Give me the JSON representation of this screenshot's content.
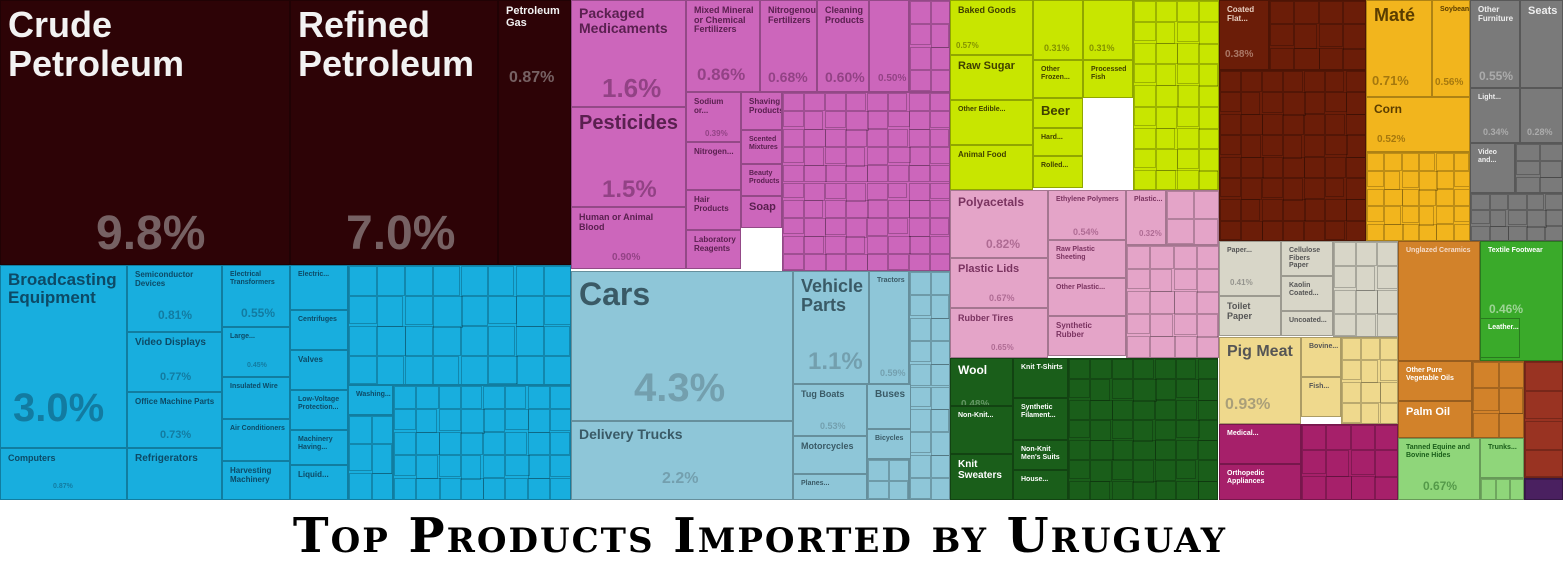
{
  "chart_data": {
    "type": "treemap",
    "title": "Top Products Imported by Uruguay",
    "value_unit": "% of imports",
    "colors": {
      "mineral": "#2d0306",
      "chemicals": "#cc66bb",
      "vegetable": "#c8e600",
      "animal_fats": "#6b1d08",
      "foodstuffs": "#f2b51d",
      "stone": "#7a7a7a",
      "plastics": "#e4a4c8",
      "paper": "#d8d6c8",
      "instruments": "#993322",
      "textiles": "#1a5e1a",
      "animal_products": "#efd98d",
      "hides": "#a6206a",
      "transport": "#8ec6d8",
      "machinery": "#18aede",
      "misc": "#4a2060",
      "tan_oils": "#d2822a",
      "green2": "#3aaa2a"
    },
    "items": [
      {
        "name": "Crude Petroleum",
        "value": "9.8%",
        "group": "mineral"
      },
      {
        "name": "Refined Petroleum",
        "value": "7.0%",
        "group": "mineral"
      },
      {
        "name": "Petroleum Gas",
        "value": "0.87%",
        "group": "mineral"
      },
      {
        "name": "Packaged Medicaments",
        "value": "1.6%",
        "group": "chemicals"
      },
      {
        "name": "Mixed Mineral or Chemical Fertilizers",
        "value": "0.86%",
        "group": "chemicals"
      },
      {
        "name": "Nitrogenous Fertilizers",
        "value": "0.68%",
        "group": "chemicals"
      },
      {
        "name": "Cleaning Products",
        "value": "0.60%",
        "group": "chemicals"
      },
      {
        "name": "",
        "value": "0.50%",
        "group": "chemicals"
      },
      {
        "name": "Pesticides",
        "value": "1.5%",
        "group": "chemicals"
      },
      {
        "name": "Sodium or...",
        "value": "0.39%",
        "group": "chemicals"
      },
      {
        "name": "Shaving Products",
        "value": "",
        "group": "chemicals"
      },
      {
        "name": "Nitrogen...",
        "value": "",
        "group": "chemicals"
      },
      {
        "name": "Scented Mixtures",
        "value": "",
        "group": "chemicals"
      },
      {
        "name": "Beauty Products",
        "value": "",
        "group": "chemicals"
      },
      {
        "name": "Human or Animal Blood",
        "value": "0.90%",
        "group": "chemicals"
      },
      {
        "name": "Hair Products",
        "value": "",
        "group": "chemicals"
      },
      {
        "name": "Soap",
        "value": "",
        "group": "chemicals"
      },
      {
        "name": "Laboratory Reagents",
        "value": "",
        "group": "chemicals"
      },
      {
        "name": "Baked Goods",
        "value": "0.57%",
        "group": "vegetable"
      },
      {
        "name": "",
        "value": "0.31%",
        "group": "vegetable"
      },
      {
        "name": "",
        "value": "0.31%",
        "group": "vegetable"
      },
      {
        "name": "Raw Sugar",
        "value": "",
        "group": "vegetable"
      },
      {
        "name": "Other Frozen...",
        "value": "",
        "group": "vegetable"
      },
      {
        "name": "Processed Fish",
        "value": "",
        "group": "vegetable"
      },
      {
        "name": "Other Edible...",
        "value": "",
        "group": "vegetable"
      },
      {
        "name": "Beer",
        "value": "",
        "group": "vegetable"
      },
      {
        "name": "Hard...",
        "value": "",
        "group": "vegetable"
      },
      {
        "name": "Animal Food",
        "value": "",
        "group": "vegetable"
      },
      {
        "name": "Rolled...",
        "value": "",
        "group": "vegetable"
      },
      {
        "name": "Coated Flat...",
        "value": "0.38%",
        "group": "animal_fats"
      },
      {
        "name": "Maté",
        "value": "0.71%",
        "group": "foodstuffs"
      },
      {
        "name": "Soybeans",
        "value": "0.56%",
        "group": "foodstuffs"
      },
      {
        "name": "Corn",
        "value": "0.52%",
        "group": "foodstuffs"
      },
      {
        "name": "Other Furniture",
        "value": "0.55%",
        "group": "stone"
      },
      {
        "name": "Seats",
        "value": "",
        "group": "stone"
      },
      {
        "name": "Light...",
        "value": "0.34%",
        "group": "stone"
      },
      {
        "name": "",
        "value": "0.28%",
        "group": "stone"
      },
      {
        "name": "Video and...",
        "value": "",
        "group": "stone"
      },
      {
        "name": "Polyacetals",
        "value": "0.82%",
        "group": "plastics"
      },
      {
        "name": "Ethylene Polymers",
        "value": "0.54%",
        "group": "plastics"
      },
      {
        "name": "Plastic...",
        "value": "0.32%",
        "group": "plastics"
      },
      {
        "name": "Raw Plastic Sheeting",
        "value": "",
        "group": "plastics"
      },
      {
        "name": "Plastic Lids",
        "value": "0.67%",
        "group": "plastics"
      },
      {
        "name": "Other Plastic...",
        "value": "",
        "group": "plastics"
      },
      {
        "name": "Rubber Tires",
        "value": "0.65%",
        "group": "plastics"
      },
      {
        "name": "Synthetic Rubber",
        "value": "",
        "group": "plastics"
      },
      {
        "name": "Paper...",
        "value": "0.41%",
        "group": "paper"
      },
      {
        "name": "Cellulose Fibers Paper",
        "value": "",
        "group": "paper"
      },
      {
        "name": "Kaolin Coated...",
        "value": "",
        "group": "paper"
      },
      {
        "name": "Toilet Paper",
        "value": "",
        "group": "paper"
      },
      {
        "name": "Uncoated...",
        "value": "",
        "group": "paper"
      },
      {
        "name": "Unglazed Ceramics",
        "value": "",
        "group": "tan_oils"
      },
      {
        "name": "Textile Footwear",
        "value": "0.46%",
        "group": "green2"
      },
      {
        "name": "Leather...",
        "value": "",
        "group": "green2"
      },
      {
        "name": "Pig Meat",
        "value": "0.93%",
        "group": "animal_products"
      },
      {
        "name": "Bovine...",
        "value": "",
        "group": "animal_products"
      },
      {
        "name": "Fish...",
        "value": "",
        "group": "animal_products"
      },
      {
        "name": "Other Pure Vegetable Oils",
        "value": "",
        "group": "tan_oils"
      },
      {
        "name": "Palm Oil",
        "value": "",
        "group": "tan_oils"
      },
      {
        "name": "Medical...",
        "value": "",
        "group": "hides"
      },
      {
        "name": "Orthopedic Appliances",
        "value": "",
        "group": "hides"
      },
      {
        "name": "Tanned Equine and Bovine Hides",
        "value": "0.67%",
        "group": "green_light"
      },
      {
        "name": "Trunks...",
        "value": "",
        "group": "green_light"
      },
      {
        "name": "Wool",
        "value": "0.48%",
        "group": "textiles"
      },
      {
        "name": "Knit T-Shirts",
        "value": "",
        "group": "textiles"
      },
      {
        "name": "Synthetic Filament...",
        "value": "",
        "group": "textiles"
      },
      {
        "name": "Non-Knit...",
        "value": "",
        "group": "textiles"
      },
      {
        "name": "Non-Knit Men's Suits",
        "value": "",
        "group": "textiles"
      },
      {
        "name": "Knit Sweaters",
        "value": "",
        "group": "textiles"
      },
      {
        "name": "House...",
        "value": "",
        "group": "textiles"
      },
      {
        "name": "Broadcasting Equipment",
        "value": "3.0%",
        "group": "machinery"
      },
      {
        "name": "Computers",
        "value": "0.87%",
        "group": "machinery"
      },
      {
        "name": "Semiconductor Devices",
        "value": "0.81%",
        "group": "machinery"
      },
      {
        "name": "Video Displays",
        "value": "0.77%",
        "group": "machinery"
      },
      {
        "name": "Office Machine Parts",
        "value": "0.73%",
        "group": "machinery"
      },
      {
        "name": "Refrigerators",
        "value": "",
        "group": "machinery"
      },
      {
        "name": "Electrical Transformers",
        "value": "0.55%",
        "group": "machinery"
      },
      {
        "name": "Large...",
        "value": "0.45%",
        "group": "machinery"
      },
      {
        "name": "Insulated Wire",
        "value": "",
        "group": "machinery"
      },
      {
        "name": "Air Conditioners",
        "value": "",
        "group": "machinery"
      },
      {
        "name": "Harvesting Machinery",
        "value": "",
        "group": "machinery"
      },
      {
        "name": "Electric...",
        "value": "",
        "group": "machinery"
      },
      {
        "name": "Centrifuges",
        "value": "",
        "group": "machinery"
      },
      {
        "name": "Valves",
        "value": "",
        "group": "machinery"
      },
      {
        "name": "Low-Voltage Protection...",
        "value": "",
        "group": "machinery"
      },
      {
        "name": "Machinery Having...",
        "value": "",
        "group": "machinery"
      },
      {
        "name": "Liquid...",
        "value": "",
        "group": "machinery"
      },
      {
        "name": "Washing...",
        "value": "",
        "group": "machinery"
      },
      {
        "name": "Cars",
        "value": "4.3%",
        "group": "transport"
      },
      {
        "name": "Delivery Trucks",
        "value": "2.2%",
        "group": "transport"
      },
      {
        "name": "Vehicle Parts",
        "value": "1.1%",
        "group": "transport"
      },
      {
        "name": "Tractors",
        "value": "0.59%",
        "group": "transport"
      },
      {
        "name": "Tug Boats",
        "value": "0.53%",
        "group": "transport"
      },
      {
        "name": "Buses",
        "value": "",
        "group": "transport"
      },
      {
        "name": "Motorcycles",
        "value": "",
        "group": "transport"
      },
      {
        "name": "Bicycles",
        "value": "",
        "group": "transport"
      },
      {
        "name": "Planes...",
        "value": "",
        "group": "transport"
      }
    ]
  }
}
